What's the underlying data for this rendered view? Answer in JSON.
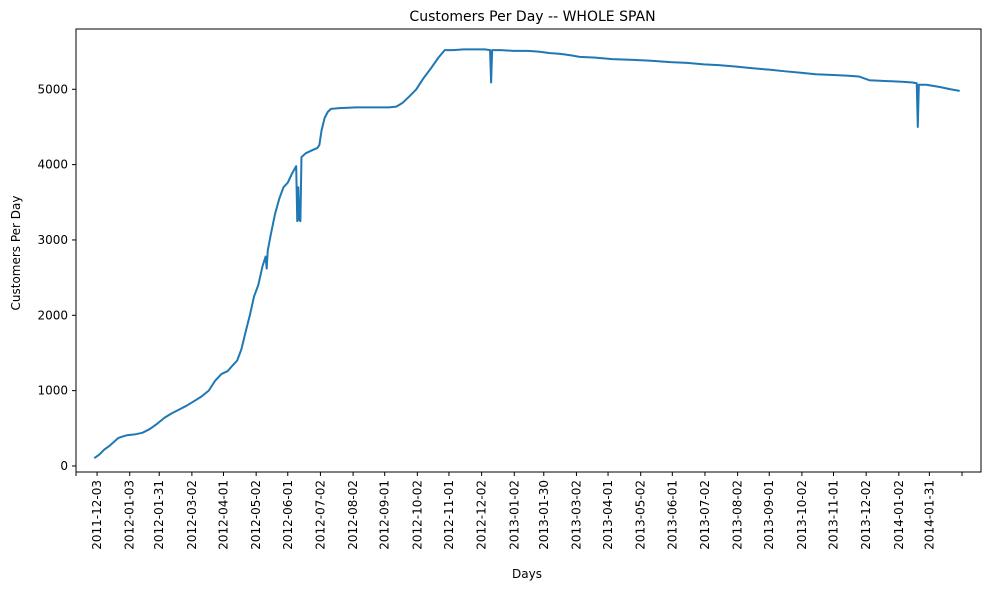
{
  "chart_data": {
    "type": "line",
    "title": "Customers Per Day -- WHOLE SPAN",
    "xlabel": "Days",
    "ylabel": "Customers Per Day",
    "ylim": [
      -80,
      5800
    ],
    "xlim": [
      "2011-11-13",
      "2014-03-21"
    ],
    "grid": false,
    "legend": "none",
    "yticks": [
      0,
      1000,
      2000,
      3000,
      4000,
      5000
    ],
    "xticks": [
      "2011-11-13",
      "2011-12-03",
      "2012-01-03",
      "2012-01-31",
      "2012-03-02",
      "2012-04-01",
      "2012-05-02",
      "2012-06-01",
      "2012-07-02",
      "2012-08-02",
      "2012-09-01",
      "2012-10-02",
      "2012-11-01",
      "2012-12-02",
      "2013-01-02",
      "2013-01-30",
      "2013-03-02",
      "2013-04-01",
      "2013-05-02",
      "2013-06-01",
      "2013-07-02",
      "2013-08-02",
      "2013-09-01",
      "2013-10-02",
      "2013-11-01",
      "2013-12-02",
      "2014-01-02",
      "2014-01-31",
      "2014-03-03"
    ],
    "xtick_labels": [
      "",
      "2011-12-03",
      "2012-01-03",
      "2012-01-31",
      "2012-03-02",
      "2012-04-01",
      "2012-05-02",
      "2012-06-01",
      "2012-07-02",
      "2012-08-02",
      "2012-09-01",
      "2012-10-02",
      "2012-11-01",
      "2012-12-02",
      "2013-01-02",
      "2013-01-30",
      "2013-03-02",
      "2013-04-01",
      "2013-05-02",
      "2013-06-01",
      "2013-07-02",
      "2013-08-02",
      "2013-09-01",
      "2013-10-02",
      "2013-11-01",
      "2013-12-02",
      "2014-01-02",
      "2014-01-31",
      ""
    ],
    "colors": {
      "series": "#1f77b4"
    },
    "series": [
      {
        "points": [
          [
            "2011-12-01",
            110
          ],
          [
            "2011-12-05",
            150
          ],
          [
            "2011-12-10",
            220
          ],
          [
            "2011-12-15",
            270
          ],
          [
            "2011-12-19",
            320
          ],
          [
            "2011-12-23",
            370
          ],
          [
            "2011-12-27",
            390
          ],
          [
            "2012-01-01",
            410
          ],
          [
            "2012-01-08",
            420
          ],
          [
            "2012-01-15",
            440
          ],
          [
            "2012-01-22",
            490
          ],
          [
            "2012-01-29",
            560
          ],
          [
            "2012-02-05",
            640
          ],
          [
            "2012-02-12",
            700
          ],
          [
            "2012-02-19",
            750
          ],
          [
            "2012-02-26",
            800
          ],
          [
            "2012-03-04",
            860
          ],
          [
            "2012-03-11",
            920
          ],
          [
            "2012-03-18",
            1000
          ],
          [
            "2012-03-24",
            1130
          ],
          [
            "2012-03-30",
            1220
          ],
          [
            "2012-04-05",
            1260
          ],
          [
            "2012-04-10",
            1340
          ],
          [
            "2012-04-14",
            1400
          ],
          [
            "2012-04-18",
            1550
          ],
          [
            "2012-04-22",
            1780
          ],
          [
            "2012-04-26",
            2000
          ],
          [
            "2012-04-30",
            2250
          ],
          [
            "2012-05-04",
            2400
          ],
          [
            "2012-05-08",
            2650
          ],
          [
            "2012-05-11",
            2780
          ],
          [
            "2012-05-12",
            2620
          ],
          [
            "2012-05-13",
            2860
          ],
          [
            "2012-05-16",
            3080
          ],
          [
            "2012-05-20",
            3350
          ],
          [
            "2012-05-24",
            3550
          ],
          [
            "2012-05-28",
            3700
          ],
          [
            "2012-06-01",
            3760
          ],
          [
            "2012-06-05",
            3880
          ],
          [
            "2012-06-09",
            3980
          ],
          [
            "2012-06-10",
            3250
          ],
          [
            "2012-06-11",
            3700
          ],
          [
            "2012-06-12",
            3260
          ],
          [
            "2012-06-13",
            3250
          ],
          [
            "2012-06-14",
            4100
          ],
          [
            "2012-06-18",
            4150
          ],
          [
            "2012-06-24",
            4190
          ],
          [
            "2012-06-29",
            4220
          ],
          [
            "2012-07-01",
            4260
          ],
          [
            "2012-07-03",
            4450
          ],
          [
            "2012-07-06",
            4620
          ],
          [
            "2012-07-09",
            4700
          ],
          [
            "2012-07-12",
            4740
          ],
          [
            "2012-07-20",
            4750
          ],
          [
            "2012-08-05",
            4760
          ],
          [
            "2012-08-20",
            4760
          ],
          [
            "2012-09-05",
            4760
          ],
          [
            "2012-09-12",
            4770
          ],
          [
            "2012-09-18",
            4820
          ],
          [
            "2012-09-24",
            4900
          ],
          [
            "2012-10-01",
            5000
          ],
          [
            "2012-10-08",
            5150
          ],
          [
            "2012-10-15",
            5280
          ],
          [
            "2012-10-22",
            5420
          ],
          [
            "2012-10-28",
            5520
          ],
          [
            "2012-11-05",
            5520
          ],
          [
            "2012-11-15",
            5530
          ],
          [
            "2012-11-25",
            5530
          ],
          [
            "2012-12-05",
            5530
          ],
          [
            "2012-12-10",
            5520
          ],
          [
            "2012-12-11",
            5090
          ],
          [
            "2012-12-12",
            5520
          ],
          [
            "2012-12-20",
            5520
          ],
          [
            "2013-01-01",
            5510
          ],
          [
            "2013-01-15",
            5510
          ],
          [
            "2013-01-25",
            5500
          ],
          [
            "2013-02-05",
            5480
          ],
          [
            "2013-02-15",
            5470
          ],
          [
            "2013-02-25",
            5450
          ],
          [
            "2013-03-05",
            5430
          ],
          [
            "2013-03-20",
            5420
          ],
          [
            "2013-04-05",
            5400
          ],
          [
            "2013-04-25",
            5390
          ],
          [
            "2013-05-10",
            5380
          ],
          [
            "2013-05-30",
            5360
          ],
          [
            "2013-06-15",
            5350
          ],
          [
            "2013-07-01",
            5330
          ],
          [
            "2013-07-15",
            5320
          ],
          [
            "2013-08-01",
            5300
          ],
          [
            "2013-08-15",
            5280
          ],
          [
            "2013-09-01",
            5260
          ],
          [
            "2013-09-15",
            5240
          ],
          [
            "2013-10-01",
            5220
          ],
          [
            "2013-10-15",
            5200
          ],
          [
            "2013-11-01",
            5190
          ],
          [
            "2013-11-15",
            5180
          ],
          [
            "2013-11-25",
            5170
          ],
          [
            "2013-12-05",
            5120
          ],
          [
            "2013-12-20",
            5110
          ],
          [
            "2014-01-05",
            5100
          ],
          [
            "2014-01-15",
            5090
          ],
          [
            "2014-01-19",
            5080
          ],
          [
            "2014-01-20",
            4500
          ],
          [
            "2014-01-21",
            5060
          ],
          [
            "2014-01-28",
            5060
          ],
          [
            "2014-02-10",
            5030
          ],
          [
            "2014-02-20",
            5000
          ],
          [
            "2014-02-28",
            4980
          ]
        ]
      }
    ]
  }
}
